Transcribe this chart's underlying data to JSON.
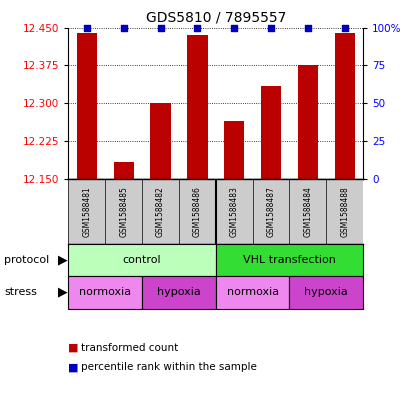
{
  "title": "GDS5810 / 7895557",
  "samples": [
    "GSM1588481",
    "GSM1588485",
    "GSM1588482",
    "GSM1588486",
    "GSM1588483",
    "GSM1588487",
    "GSM1588484",
    "GSM1588488"
  ],
  "bar_values": [
    12.44,
    12.185,
    12.3,
    12.435,
    12.265,
    12.335,
    12.375,
    12.44
  ],
  "percentile_values": [
    100,
    100,
    100,
    100,
    100,
    100,
    100,
    100
  ],
  "ymin": 12.15,
  "ymax": 12.45,
  "yticks": [
    12.15,
    12.225,
    12.3,
    12.375,
    12.45
  ],
  "right_yticks": [
    0,
    25,
    50,
    75,
    100
  ],
  "bar_color": "#bb0000",
  "percentile_color": "#0000bb",
  "protocol_groups": [
    {
      "label": "control",
      "start": 0,
      "end": 4,
      "color": "#bbffbb"
    },
    {
      "label": "VHL transfection",
      "start": 4,
      "end": 8,
      "color": "#33dd33"
    }
  ],
  "stress_groups": [
    {
      "label": "normoxia",
      "start": 0,
      "end": 2,
      "color": "#ee88ee"
    },
    {
      "label": "hypoxia",
      "start": 2,
      "end": 4,
      "color": "#cc44cc"
    },
    {
      "label": "normoxia",
      "start": 4,
      "end": 6,
      "color": "#ee88ee"
    },
    {
      "label": "hypoxia",
      "start": 6,
      "end": 8,
      "color": "#cc44cc"
    }
  ],
  "sample_bg_color": "#cccccc",
  "protocol_label": "protocol",
  "stress_label": "stress",
  "legend_items": [
    {
      "label": "transformed count",
      "color": "#bb0000"
    },
    {
      "label": "percentile rank within the sample",
      "color": "#0000bb"
    }
  ],
  "figsize": [
    4.15,
    3.93
  ],
  "dpi": 100
}
